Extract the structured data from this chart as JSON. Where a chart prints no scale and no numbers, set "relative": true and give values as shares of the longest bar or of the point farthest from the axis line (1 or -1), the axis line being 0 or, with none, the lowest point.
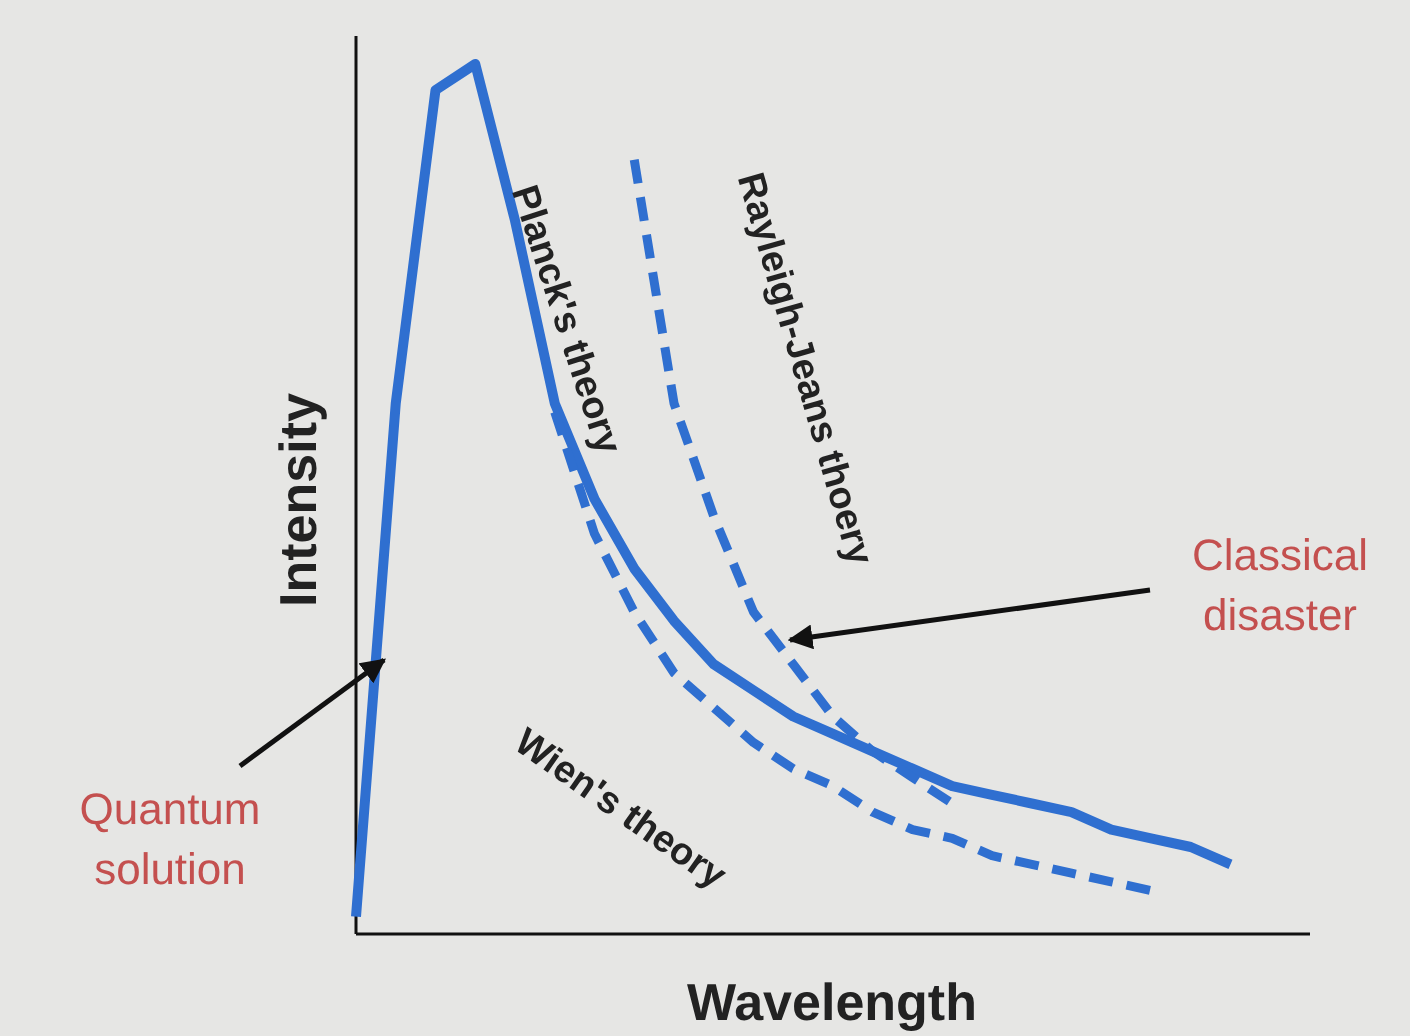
{
  "chart_data": {
    "type": "line",
    "relative": true,
    "xlabel": "Wavelength",
    "ylabel": "Intensity",
    "marker": "none",
    "categories": [
      null,
      null,
      null,
      null,
      null,
      null,
      null,
      null,
      null,
      null,
      null,
      null,
      null,
      null,
      null,
      null,
      null,
      null,
      null,
      null,
      null,
      null,
      null,
      null,
      null
    ],
    "series": [
      {
        "name": "Planck's theory",
        "color": "#2f6fd0",
        "line_style": "solid",
        "values": [
          0.02,
          0.61,
          0.97,
          1,
          0.82,
          0.61,
          0.5,
          0.42,
          0.36,
          0.31,
          0.28,
          0.25,
          0.23,
          0.21,
          0.19,
          0.17,
          0.16,
          0.15,
          0.14,
          0.12,
          0.11,
          0.1,
          0.08,
          null,
          null
        ]
      },
      {
        "name": "Rayleigh-Jeans thoery",
        "color": "#2f6fd0",
        "line_style": "dashed",
        "values": [
          null,
          null,
          null,
          null,
          null,
          null,
          null,
          0.89,
          0.61,
          0.48,
          0.37,
          0.31,
          0.25,
          0.21,
          0.18,
          0.15,
          null,
          null,
          null,
          null,
          null,
          null,
          null,
          null,
          null
        ]
      },
      {
        "name": "Wien's theory",
        "color": "#2f6fd0",
        "line_style": "dashed",
        "values": [
          null,
          null,
          null,
          null,
          null,
          0.6,
          0.46,
          0.37,
          0.3,
          0.26,
          0.22,
          0.19,
          0.17,
          0.14,
          0.12,
          0.11,
          0.09,
          0.08,
          0.07,
          0.06,
          0.05,
          null,
          null,
          null,
          null
        ]
      }
    ],
    "annotations": [
      "Quantum solution",
      "Classical disaster"
    ]
  }
}
